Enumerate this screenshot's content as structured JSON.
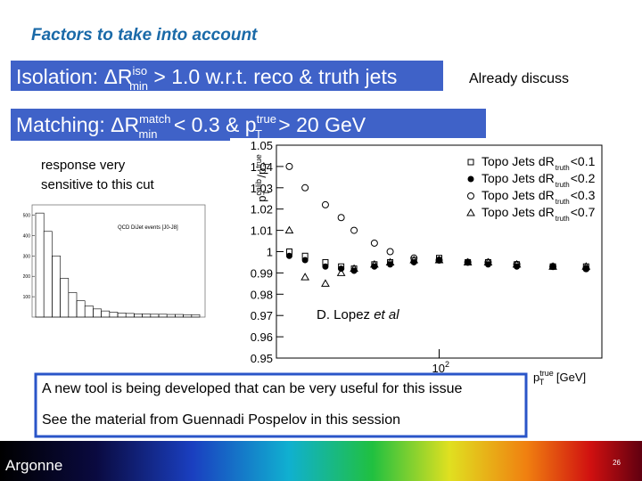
{
  "title": "Factors to take into account",
  "isolation": {
    "label": "Isolation: ",
    "symbol": "ΔR",
    "sup": "iso",
    "sub": "min",
    "rest": " > 1.0 w.r.t. reco & truth jets"
  },
  "note": "Already discuss",
  "matching": {
    "label": "Matching: ",
    "symbol": "ΔR",
    "sup": "match",
    "sub": "min",
    "mid": " < 0.3 & p",
    "sup2": "true",
    "sub2": "T",
    "rest": " > 20 GeV"
  },
  "remark": [
    "response very",
    "sensitive to this cut"
  ],
  "inset": {
    "label": "QCD DiJet events [J0-J8]",
    "values": [
      510,
      420,
      300,
      190,
      120,
      80,
      55,
      40,
      30,
      24,
      20,
      18,
      16,
      15,
      14,
      14,
      13,
      13,
      12,
      12
    ],
    "ylim": [
      0,
      550
    ],
    "yticks": [
      100,
      200,
      300,
      400,
      500
    ]
  },
  "plot": {
    "type": "scatter",
    "ylim": [
      0.95,
      1.05
    ],
    "yticks": [
      {
        "value": 0.95,
        "label": "0.95"
      },
      {
        "value": 0.96,
        "label": "0.96"
      },
      {
        "value": 0.97,
        "label": "0.97"
      },
      {
        "value": 0.98,
        "label": "0.98"
      },
      {
        "value": 0.99,
        "label": "0.99"
      },
      {
        "value": 1,
        "label": "1"
      },
      {
        "value": 1.01,
        "label": "1.01"
      },
      {
        "value": 1.02,
        "label": "1.02"
      },
      {
        "value": 1.03,
        "label": "1.03"
      },
      {
        "value": 1.04,
        "label": "1.04"
      },
      {
        "value": 1.05,
        "label": "1.05"
      }
    ],
    "xlim": [
      10,
      1000
    ],
    "log_x": true,
    "xticks": [
      {
        "value": 100,
        "label": "10",
        "exp": "2"
      }
    ],
    "y_label": {
      "base": "p",
      "sup": "calib",
      "sub": "T",
      "div": "/p",
      "sup2": "true",
      "sub2": "T"
    },
    "x_label": {
      "base": "p",
      "sup": "true",
      "sub": "T",
      "rest": " [GeV]"
    },
    "annotation": {
      "text": "D. Lopez ",
      "em": "et al"
    },
    "x": [
      12,
      15,
      20,
      25,
      30,
      40,
      50,
      70,
      100,
      150,
      200,
      300,
      500,
      800
    ],
    "series": [
      {
        "name": "Topo Jets dR",
        "sub": "truth",
        "cut": "<0.1",
        "marker": "square",
        "values": [
          1.0,
          0.998,
          0.995,
          0.993,
          0.992,
          0.994,
          0.995,
          0.996,
          0.997,
          0.995,
          0.995,
          0.994,
          0.993,
          0.993
        ]
      },
      {
        "name": "Topo Jets dR",
        "sub": "truth",
        "cut": "<0.2",
        "marker": "dot",
        "values": [
          0.998,
          0.996,
          0.993,
          0.992,
          0.991,
          0.993,
          0.994,
          0.995,
          0.996,
          0.995,
          0.994,
          0.993,
          0.993,
          0.992
        ]
      },
      {
        "name": "Topo Jets dR",
        "sub": "truth",
        "cut": "<0.3",
        "marker": "circle",
        "values": [
          1.04,
          1.03,
          1.022,
          1.016,
          1.01,
          1.004,
          1.0,
          0.997,
          0.996,
          0.995,
          0.995,
          0.994,
          0.993,
          0.992
        ]
      },
      {
        "name": "Topo Jets dR",
        "sub": "truth",
        "cut": "<0.7",
        "marker": "triangle",
        "values": [
          1.01,
          0.988,
          0.985,
          0.99,
          0.992,
          0.994,
          0.995,
          0.996,
          0.996,
          0.995,
          0.995,
          0.994,
          0.993,
          0.993
        ]
      }
    ]
  },
  "box": [
    "A new tool is being developed that can be very useful for this issue",
    "See the material from Guennadi Pospelov  in this session"
  ],
  "footer": {
    "logo": "Argonne",
    "page": "26"
  }
}
